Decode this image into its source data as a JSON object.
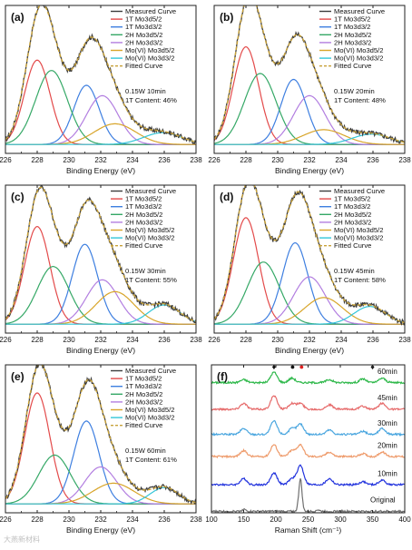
{
  "watermark": "大燕新材料",
  "colors": {
    "measured": "#3d3d3d",
    "fitted": "#c8a23a",
    "components": [
      "#e34a4a",
      "#3e7fe0",
      "#35a866",
      "#b27ee0",
      "#d8a52a",
      "#33c6d8"
    ]
  },
  "xps_legend": [
    "Measured Curve",
    "1T Mo3d5/2",
    "1T Mo3d3/2",
    "2H Mo3d5/2",
    "2H Mo3d3/2",
    "Mo(VI) Mo3d5/2",
    "Mo(VI) Mo3d3/2",
    "Fitted Curve"
  ],
  "chart_data": [
    {
      "panel": "(a)",
      "type": "line",
      "xlabel": "Binding Energy (eV)",
      "xlim": [
        226,
        238
      ],
      "xticks": [
        226,
        228,
        230,
        232,
        234,
        236,
        238
      ],
      "annotation": [
        "0.15W 10min",
        "1T Content: 46%"
      ],
      "baseline": 6,
      "peaks": [
        {
          "name": "1T Mo3d5/2",
          "center": 228.0,
          "width": 0.8,
          "height": 57
        },
        {
          "name": "1T Mo3d3/2",
          "center": 231.1,
          "width": 0.8,
          "height": 40
        },
        {
          "name": "2H Mo3d5/2",
          "center": 228.9,
          "width": 1.0,
          "height": 50
        },
        {
          "name": "2H Mo3d3/2",
          "center": 232.1,
          "width": 1.0,
          "height": 33
        },
        {
          "name": "Mo(VI) Mo3d5/2",
          "center": 232.9,
          "width": 1.3,
          "height": 14
        },
        {
          "name": "Mo(VI) Mo3d3/2",
          "center": 235.9,
          "width": 1.2,
          "height": 8
        }
      ]
    },
    {
      "panel": "(b)",
      "type": "line",
      "xlabel": "Binding Energy (eV)",
      "xlim": [
        226,
        238
      ],
      "xticks": [
        226,
        228,
        230,
        232,
        234,
        236,
        238
      ],
      "annotation": [
        "0.15W 20min",
        "1T Content: 48%"
      ],
      "baseline": 6,
      "peaks": [
        {
          "name": "1T Mo3d5/2",
          "center": 228.0,
          "width": 0.8,
          "height": 66
        },
        {
          "name": "1T Mo3d3/2",
          "center": 231.0,
          "width": 0.8,
          "height": 44
        },
        {
          "name": "2H Mo3d5/2",
          "center": 228.9,
          "width": 1.0,
          "height": 48
        },
        {
          "name": "2H Mo3d3/2",
          "center": 232.0,
          "width": 1.0,
          "height": 33
        },
        {
          "name": "Mo(VI) Mo3d5/2",
          "center": 232.9,
          "width": 1.3,
          "height": 10
        },
        {
          "name": "Mo(VI) Mo3d3/2",
          "center": 235.9,
          "width": 1.2,
          "height": 7
        }
      ]
    },
    {
      "panel": "(c)",
      "type": "line",
      "xlabel": "Binding Energy (eV)",
      "xlim": [
        226,
        238
      ],
      "xticks": [
        226,
        228,
        230,
        232,
        234,
        236,
        238
      ],
      "annotation": [
        "0.15W 30min",
        "1T Content: 55%"
      ],
      "baseline": 6,
      "peaks": [
        {
          "name": "1T Mo3d5/2",
          "center": 228.0,
          "width": 0.8,
          "height": 66
        },
        {
          "name": "1T Mo3d3/2",
          "center": 231.0,
          "width": 0.8,
          "height": 54
        },
        {
          "name": "2H Mo3d5/2",
          "center": 229.0,
          "width": 1.0,
          "height": 39
        },
        {
          "name": "2H Mo3d3/2",
          "center": 232.1,
          "width": 1.0,
          "height": 30
        },
        {
          "name": "Mo(VI) Mo3d5/2",
          "center": 232.9,
          "width": 1.2,
          "height": 22
        },
        {
          "name": "Mo(VI) Mo3d3/2",
          "center": 236.0,
          "width": 1.0,
          "height": 13
        }
      ]
    },
    {
      "panel": "(d)",
      "type": "line",
      "xlabel": "Binding Energy (eV)",
      "xlim": [
        226,
        238
      ],
      "xticks": [
        226,
        228,
        230,
        232,
        234,
        236,
        238
      ],
      "annotation": [
        "0.15W 45min",
        "1T Content: 58%"
      ],
      "baseline": 6,
      "peaks": [
        {
          "name": "1T Mo3d5/2",
          "center": 228.0,
          "width": 0.8,
          "height": 72
        },
        {
          "name": "1T Mo3d3/2",
          "center": 231.1,
          "width": 0.8,
          "height": 55
        },
        {
          "name": "2H Mo3d5/2",
          "center": 229.1,
          "width": 1.0,
          "height": 42
        },
        {
          "name": "2H Mo3d3/2",
          "center": 232.0,
          "width": 1.0,
          "height": 32
        },
        {
          "name": "Mo(VI) Mo3d5/2",
          "center": 232.9,
          "width": 1.2,
          "height": 18
        },
        {
          "name": "Mo(VI) Mo3d3/2",
          "center": 235.8,
          "width": 1.0,
          "height": 12
        }
      ]
    },
    {
      "panel": "(e)",
      "type": "line",
      "xlabel": "Binding Energy (eV)",
      "xlim": [
        226,
        238
      ],
      "xticks": [
        226,
        228,
        230,
        232,
        234,
        236,
        238
      ],
      "annotation": [
        "0.15W 60min",
        "1T Content: 61%"
      ],
      "baseline": 6,
      "peaks": [
        {
          "name": "1T Mo3d5/2",
          "center": 228.0,
          "width": 0.8,
          "height": 75
        },
        {
          "name": "1T Mo3d3/2",
          "center": 231.1,
          "width": 0.8,
          "height": 56
        },
        {
          "name": "2H Mo3d5/2",
          "center": 229.1,
          "width": 1.0,
          "height": 33
        },
        {
          "name": "2H Mo3d3/2",
          "center": 232.0,
          "width": 1.0,
          "height": 25
        },
        {
          "name": "Mo(VI) Mo3d5/2",
          "center": 232.8,
          "width": 1.3,
          "height": 14
        },
        {
          "name": "Mo(VI) Mo3d3/2",
          "center": 236.0,
          "width": 0.9,
          "height": 11
        }
      ]
    },
    {
      "panel": "(f)",
      "type": "line",
      "xlabel": "Raman Shift (cm⁻¹)",
      "xlim": [
        100,
        400
      ],
      "xticks": [
        100,
        150,
        200,
        250,
        300,
        350,
        400
      ],
      "series": [
        {
          "name": "60min",
          "color": "#2eb84a",
          "offset": 88,
          "peaks": [
            [
              150,
              2
            ],
            [
              197,
              7
            ],
            [
              225,
              3
            ],
            [
              283,
              2
            ],
            [
              335,
              2.5
            ],
            [
              365,
              3
            ]
          ]
        },
        {
          "name": "45min",
          "color": "#e66a6a",
          "offset": 70,
          "peaks": [
            [
              150,
              4
            ],
            [
              197,
              9
            ],
            [
              225,
              4
            ],
            [
              238,
              4
            ],
            [
              283,
              3
            ],
            [
              335,
              2
            ],
            [
              365,
              4
            ]
          ]
        },
        {
          "name": "30min",
          "color": "#4aa6df",
          "offset": 53,
          "peaks": [
            [
              150,
              4
            ],
            [
              197,
              9
            ],
            [
              225,
              4
            ],
            [
              238,
              7
            ],
            [
              283,
              3
            ],
            [
              335,
              2
            ],
            [
              365,
              4
            ]
          ]
        },
        {
          "name": "20min",
          "color": "#ee9a6a",
          "offset": 38,
          "peaks": [
            [
              150,
              4
            ],
            [
              197,
              8
            ],
            [
              225,
              4
            ],
            [
              238,
              8
            ],
            [
              283,
              3
            ],
            [
              335,
              2
            ],
            [
              365,
              3
            ]
          ]
        },
        {
          "name": "10min",
          "color": "#2233dd",
          "offset": 19,
          "peaks": [
            [
              150,
              4
            ],
            [
              197,
              8
            ],
            [
              225,
              4
            ],
            [
              238,
              13
            ],
            [
              283,
              4
            ],
            [
              335,
              2
            ],
            [
              365,
              3
            ]
          ]
        },
        {
          "name": "Original",
          "color": "#707070",
          "offset": 1,
          "peaks": [
            [
              150,
              1.5
            ],
            [
              238,
              22
            ],
            [
              265,
              1
            ]
          ]
        }
      ],
      "markers": [
        {
          "symbol": "♦",
          "x": 197,
          "color": "#111111"
        },
        {
          "symbol": "●",
          "x": 226,
          "color": "#111111"
        },
        {
          "symbol": "●",
          "x": 240,
          "color": "#e02020"
        },
        {
          "symbol": "♦",
          "x": 350,
          "color": "#111111"
        }
      ]
    }
  ]
}
